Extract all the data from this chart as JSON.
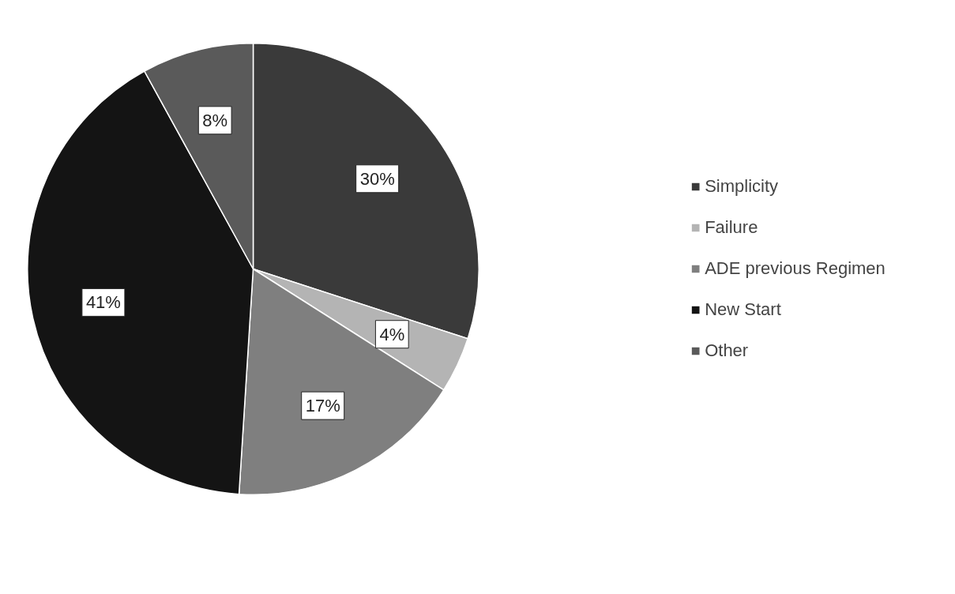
{
  "chart_data": {
    "type": "pie",
    "categories": [
      "Simplicity",
      "Failure",
      "ADE previous Regimen",
      "New Start",
      "Other"
    ],
    "values": [
      30,
      4,
      17,
      41,
      8
    ],
    "colors": [
      "#3a3a3a",
      "#b4b4b4",
      "#7f7f7f",
      "#141414",
      "#5a5a5a"
    ],
    "value_labels": [
      "30%",
      "4%",
      "17%",
      "41%",
      "8%"
    ],
    "legend": "right"
  }
}
